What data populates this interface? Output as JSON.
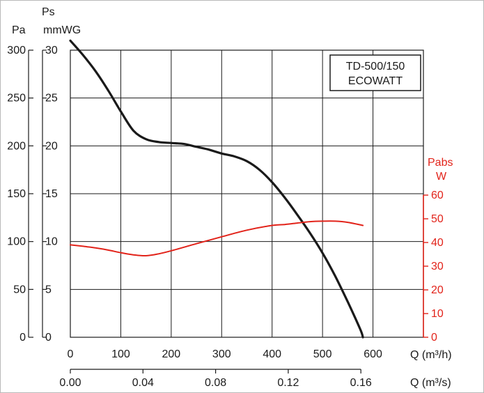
{
  "chart_data": {
    "type": "line",
    "model_label": [
      "TD-500/150",
      "ECOWATT"
    ],
    "left_axis_pa": {
      "label": "Pa",
      "ticks": [
        0,
        50,
        100,
        150,
        200,
        250,
        300
      ],
      "ylim": [
        0,
        300
      ]
    },
    "left_axis_mmwg": {
      "label_top": "Ps",
      "label": "mmWG",
      "ticks": [
        0,
        5,
        10,
        15,
        20,
        25,
        30
      ],
      "ylim": [
        0,
        30
      ]
    },
    "right_axis": {
      "label_top": "Pabs",
      "label": "W",
      "ticks": [
        0,
        10,
        20,
        30,
        40,
        50,
        60
      ],
      "ylim": [
        0,
        60
      ],
      "color": "#e2231a"
    },
    "x_axis_m3h": {
      "label": "Q (m³/h)",
      "ticks": [
        0,
        100,
        200,
        300,
        400,
        500,
        600
      ],
      "xlim": [
        0,
        700
      ]
    },
    "x_axis_m3s": {
      "label": "Q (m³/s)",
      "ticks": [
        "0.00",
        "0.04",
        "0.08",
        "0.12",
        "0.16"
      ],
      "tick_values": [
        0,
        0.04,
        0.08,
        0.12,
        0.16
      ]
    },
    "grid": true,
    "series": [
      {
        "axis": "pressure_mmwg",
        "color": "#1a1a1a",
        "x": [
          0,
          25,
          50,
          75,
          100,
          125,
          150,
          175,
          200,
          225,
          250,
          275,
          300,
          325,
          350,
          375,
          400,
          425,
          450,
          475,
          500,
          525,
          550,
          575,
          580
        ],
        "y": [
          31.0,
          29.5,
          27.8,
          25.8,
          23.6,
          21.6,
          20.7,
          20.4,
          20.3,
          20.2,
          19.9,
          19.6,
          19.2,
          18.9,
          18.4,
          17.5,
          16.2,
          14.6,
          12.8,
          10.9,
          8.8,
          6.4,
          3.7,
          0.8,
          0
        ]
      },
      {
        "axis": "power_w",
        "color": "#e2231a",
        "x": [
          0,
          25,
          50,
          75,
          100,
          125,
          150,
          175,
          200,
          250,
          300,
          350,
          400,
          425,
          450,
          475,
          500,
          525,
          550,
          580
        ],
        "y": [
          39.0,
          38.4,
          37.7,
          36.8,
          35.7,
          34.8,
          34.4,
          35.2,
          36.5,
          39.5,
          42.4,
          45.2,
          47.2,
          47.6,
          48.2,
          48.8,
          49.0,
          49.0,
          48.5,
          47.2
        ]
      }
    ]
  }
}
